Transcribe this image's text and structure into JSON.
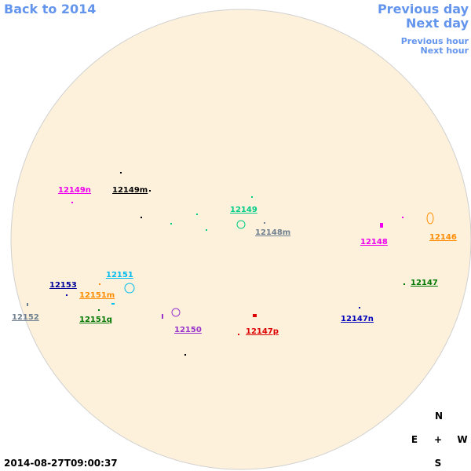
{
  "nav": {
    "back": "Back to 2014",
    "previous_day": "Previous day",
    "next_day": "Next day",
    "previous_hour": "Previous hour",
    "next_hour": "Next hour"
  },
  "regions": [
    {
      "label": "12149n",
      "color": "#ee00ee"
    },
    {
      "label": "12149m",
      "color": "#000000"
    },
    {
      "label": "12149",
      "color": "#00cc88"
    },
    {
      "label": "12148m",
      "color": "#708090"
    },
    {
      "label": "12148",
      "color": "#ee00ee"
    },
    {
      "label": "12146",
      "color": "#ff8c00"
    },
    {
      "label": "12147",
      "color": "#007700"
    },
    {
      "label": "12153",
      "color": "#000099"
    },
    {
      "label": "12151",
      "color": "#00bbee"
    },
    {
      "label": "12151m",
      "color": "#ff8c00"
    },
    {
      "label": "12152",
      "color": "#708090"
    },
    {
      "label": "12151q",
      "color": "#007700"
    },
    {
      "label": "12150",
      "color": "#9933cc"
    },
    {
      "label": "12147p",
      "color": "#dd0000"
    },
    {
      "label": "12147n",
      "color": "#0000bb"
    }
  ],
  "compass": {
    "north": "N",
    "east": "E",
    "center": "+",
    "west": "W",
    "south": "S"
  },
  "timestamp": "2014-08-27T09:00:37"
}
